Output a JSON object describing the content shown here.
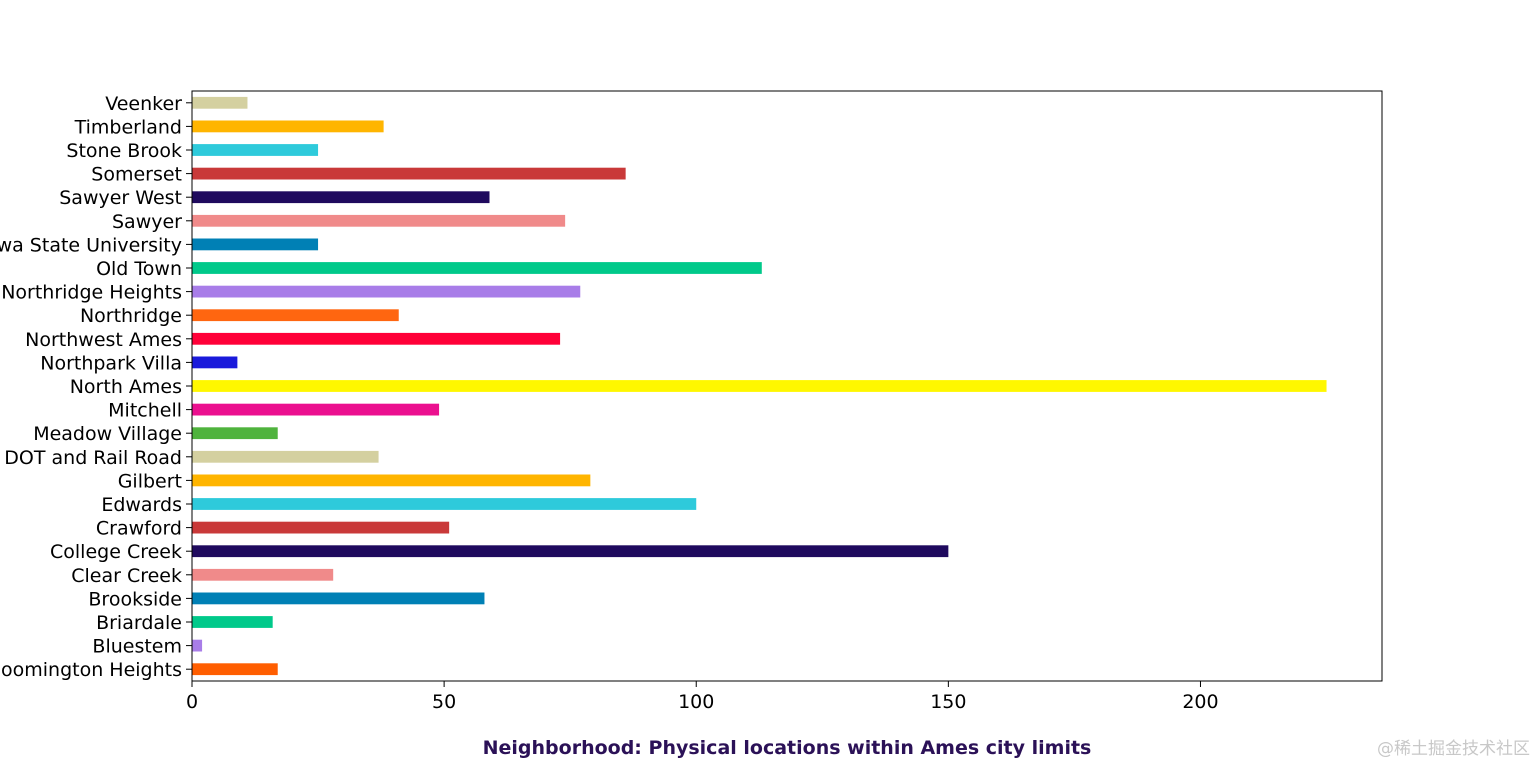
{
  "chart_data": {
    "type": "bar",
    "orientation": "horizontal",
    "title": "",
    "xlabel": "Neighborhood: Physical locations within Ames city limits",
    "ylabel": "",
    "xlim": [
      0,
      236
    ],
    "xticks": [
      0,
      50,
      100,
      150,
      200
    ],
    "categories": [
      "Bloomington Heights",
      "Bluestem",
      "Briardale",
      "Brookside",
      "Clear Creek",
      "College Creek",
      "Crawford",
      "Edwards",
      "Gilbert",
      "Iowa DOT and Rail Road",
      "Meadow Village",
      "Mitchell",
      "North Ames",
      "Northpark Villa",
      "Northwest Ames",
      "Northridge",
      "Northridge Heights",
      "Old Town",
      "Iowa State University",
      "Sawyer",
      "Sawyer West",
      "Somerset",
      "Stone Brook",
      "Timberland",
      "Veenker"
    ],
    "values": [
      17,
      2,
      16,
      58,
      28,
      150,
      51,
      100,
      79,
      37,
      17,
      49,
      225,
      9,
      73,
      41,
      77,
      113,
      25,
      74,
      59,
      86,
      25,
      38,
      11
    ],
    "colors": [
      "#ff5e00",
      "#a87de8",
      "#00c98a",
      "#0080b5",
      "#f08a8a",
      "#1f0a5e",
      "#c93939",
      "#2ecadb",
      "#ffb500",
      "#d4d0a0",
      "#4fb33d",
      "#eb108f",
      "#fff700",
      "#1a1adb",
      "#ff0038",
      "#ff6610",
      "#a87de8",
      "#00c98a",
      "#0080b5",
      "#f08a8a",
      "#1f0a5e",
      "#c93939",
      "#2ecadb",
      "#ffb500",
      "#d4d0a0"
    ],
    "xlabel_color": "#2b1157",
    "grid": false,
    "legend": "none"
  },
  "watermark": "@稀土掘金技术社区"
}
